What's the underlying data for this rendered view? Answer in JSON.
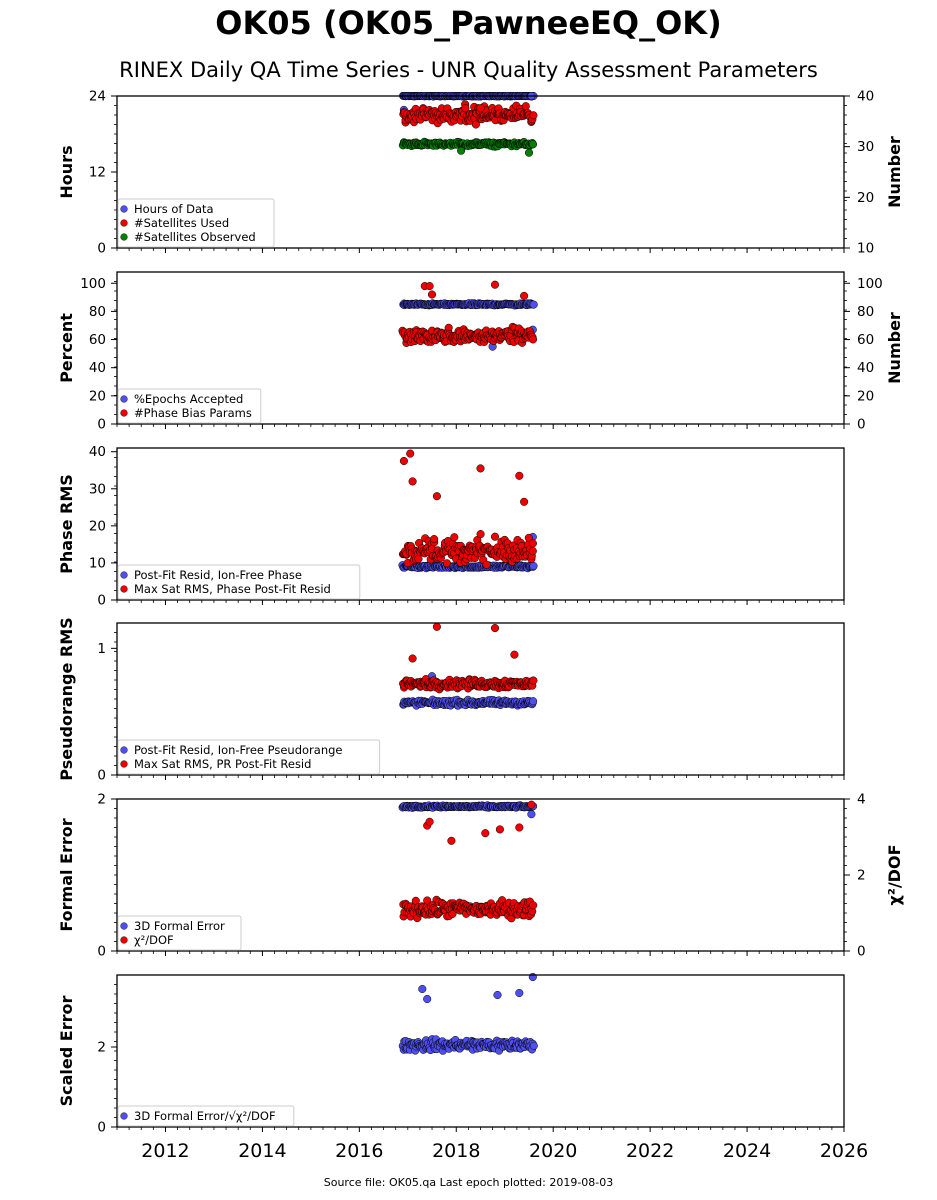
{
  "title": "OK05 (OK05_PawneeEQ_OK)",
  "subtitle": "RINEX Daily QA Time Series - UNR Quality Assessment Parameters",
  "footer": "Source file: OK05.qa Last epoch plotted: 2019-08-03",
  "colors": {
    "blue": "#4f4ff0",
    "red": "#ee0000",
    "green": "#008000"
  },
  "chart_data": {
    "type": "scatter",
    "x_axis": {
      "range": [
        2011.0,
        2026.0
      ],
      "ticks": [
        2012,
        2014,
        2016,
        2018,
        2020,
        2022,
        2024,
        2026
      ],
      "ticklabels": [
        "2012",
        "2014",
        "2016",
        "2018",
        "2020",
        "2022",
        "2024",
        "2026"
      ]
    },
    "data_span": [
      2016.9,
      2019.59
    ],
    "panels": [
      {
        "ylabel": "Hours",
        "ylim": [
          0,
          24
        ],
        "yticks": [
          0,
          12,
          24
        ],
        "y2label": "Number",
        "y2lim": [
          10,
          40
        ],
        "y2ticks": [
          10,
          20,
          30,
          40
        ],
        "legend_position": "lower-left",
        "series": [
          {
            "name": "Hours of Data",
            "color": "#4f4ff0",
            "axis": "left",
            "typical": 24,
            "spread": 0.1,
            "outliers": [
              [
                2016.92,
                21.8
              ],
              [
                2019.55,
                24
              ]
            ]
          },
          {
            "name": "#Satellites Used",
            "color": "#ee0000",
            "axis": "right",
            "typical": 36,
            "spread": 1.8,
            "outliers": [
              [
                2018.5,
                37.6
              ]
            ]
          },
          {
            "name": "#Satellites Observed",
            "color": "#008000",
            "axis": "right",
            "typical": 30.5,
            "spread": 0.6,
            "outliers": [
              [
                2018.1,
                29.2
              ],
              [
                2019.5,
                28.8
              ]
            ]
          }
        ]
      },
      {
        "ylabel": "Percent",
        "ylim": [
          0,
          108
        ],
        "yticks": [
          0,
          20,
          40,
          60,
          80,
          100
        ],
        "y2label": "Number",
        "y2lim": [
          0,
          108
        ],
        "y2ticks": [
          0,
          20,
          40,
          60,
          80,
          100
        ],
        "legend_position": "lower-left",
        "series": [
          {
            "name": "%Epochs Accepted",
            "color": "#4f4ff0",
            "axis": "left",
            "typical": 85,
            "spread": 1,
            "outliers": [
              [
                2018.75,
                55
              ],
              [
                2019.58,
                67
              ]
            ]
          },
          {
            "name": "#Phase Bias Params",
            "color": "#ee0000",
            "axis": "right",
            "typical": 62,
            "spread": 6,
            "outliers": [
              [
                2017.35,
                98
              ],
              [
                2017.45,
                98
              ],
              [
                2018.8,
                99
              ],
              [
                2019.4,
                91
              ],
              [
                2017.5,
                92
              ]
            ]
          }
        ]
      },
      {
        "ylabel": "Phase RMS",
        "ylim": [
          0,
          41
        ],
        "yticks": [
          0,
          10,
          20,
          30,
          40
        ],
        "legend_position": "lower-left",
        "series": [
          {
            "name": "Post-Fit Resid, Ion-Free Phase",
            "color": "#4f4ff0",
            "axis": "left",
            "typical": 9,
            "spread": 0.6,
            "outliers": [
              [
                2019.58,
                17
              ]
            ]
          },
          {
            "name": "Max Sat RMS, Phase Post-Fit Resid",
            "color": "#ee0000",
            "axis": "left",
            "typical": 13,
            "spread": 4,
            "outliers": [
              [
                2016.92,
                37.5
              ],
              [
                2017.05,
                39.5
              ],
              [
                2017.1,
                32
              ],
              [
                2018.5,
                35.5
              ],
              [
                2019.3,
                33.5
              ],
              [
                2019.4,
                26.5
              ],
              [
                2017.6,
                28
              ]
            ]
          }
        ]
      },
      {
        "ylabel": "Pseudorange RMS",
        "ylim": [
          0,
          1.2
        ],
        "yticks": [
          0,
          1
        ],
        "legend_position": "lower-left",
        "series": [
          {
            "name": "Post-Fit Resid, Ion-Free Pseudorange",
            "color": "#4f4ff0",
            "axis": "left",
            "typical": 0.57,
            "spread": 0.03,
            "outliers": [
              [
                2017.5,
                0.78
              ]
            ]
          },
          {
            "name": "Max Sat RMS, PR Post-Fit Resid",
            "color": "#ee0000",
            "axis": "left",
            "typical": 0.72,
            "spread": 0.05,
            "outliers": [
              [
                2017.6,
                1.17
              ],
              [
                2018.8,
                1.16
              ],
              [
                2017.1,
                0.92
              ],
              [
                2019.2,
                0.95
              ]
            ]
          }
        ]
      },
      {
        "ylabel": "Formal Error",
        "ylim": [
          0,
          2
        ],
        "yticks": [
          0,
          2
        ],
        "y2label": "χ²/DOF",
        "y2lim": [
          0,
          4
        ],
        "y2ticks": [
          0,
          2,
          4
        ],
        "legend_position": "lower-left",
        "series": [
          {
            "name": "3D Formal Error",
            "color": "#4f4ff0",
            "axis": "left",
            "typical": 1.9,
            "spread": 0.02,
            "outliers": [
              [
                2019.55,
                1.8
              ]
            ]
          },
          {
            "name": "χ²/DOF",
            "color": "#ee0000",
            "axis": "right",
            "typical": 1.1,
            "spread": 0.3,
            "outliers": [
              [
                2017.4,
                3.3
              ],
              [
                2017.45,
                3.4
              ],
              [
                2018.6,
                3.1
              ],
              [
                2018.9,
                3.2
              ],
              [
                2019.3,
                3.25
              ],
              [
                2019.55,
                3.85
              ],
              [
                2017.9,
                2.9
              ]
            ]
          }
        ]
      },
      {
        "ylabel": "Scaled Error",
        "ylim": [
          0,
          3.8
        ],
        "yticks": [
          0,
          2
        ],
        "legend_position": "lower-left",
        "series": [
          {
            "name": "3D Formal Error/√χ²/DOF",
            "color": "#4f4ff0",
            "axis": "left",
            "typical": 2.05,
            "spread": 0.2,
            "outliers": [
              [
                2019.58,
                3.75
              ],
              [
                2017.3,
                3.45
              ],
              [
                2017.4,
                3.2
              ],
              [
                2018.85,
                3.3
              ],
              [
                2019.3,
                3.35
              ]
            ]
          }
        ]
      }
    ]
  }
}
